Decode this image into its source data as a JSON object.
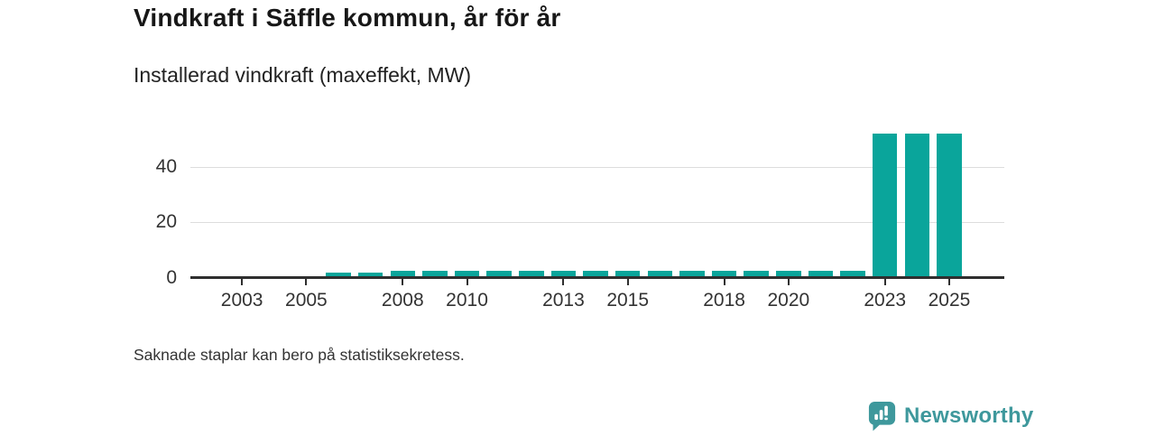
{
  "header": {
    "title": "Vindkraft i Säffle kommun, år för år",
    "subtitle": "Installerad vindkraft (maxeffekt, MW)"
  },
  "footnote": {
    "text": "Saknade staplar kan bero på statistiksekretess."
  },
  "branding": {
    "logo_text": "Newsworthy",
    "logo_icon": "bar-chart-speech-bubble-icon",
    "brand_color": "#3e989c"
  },
  "colors": {
    "bar": "#0aa59b",
    "axis_line": "#2f2f2f",
    "gridline": "#dddddd",
    "axis_text": "#333333",
    "title_text": "#171717"
  },
  "chart_data": {
    "type": "bar",
    "title": "Vindkraft i Säffle kommun, år för år",
    "subtitle": "Installerad vindkraft (maxeffekt, MW)",
    "ylabel": "Installerad vindkraft (maxeffekt, MW)",
    "xlabel": "",
    "unit": "MW",
    "categories": [
      2002,
      2003,
      2004,
      2005,
      2006,
      2007,
      2008,
      2009,
      2010,
      2011,
      2012,
      2013,
      2014,
      2015,
      2016,
      2017,
      2018,
      2019,
      2020,
      2021,
      2022,
      2023,
      2024,
      2025
    ],
    "values": [
      null,
      null,
      null,
      null,
      1.7,
      1.7,
      2.5,
      2.5,
      2.5,
      2.5,
      2.5,
      2.5,
      2.5,
      2.5,
      2.5,
      2.5,
      2.5,
      2.5,
      2.5,
      2.5,
      2.5,
      52,
      52,
      52
    ],
    "missing_years": [
      2002,
      2003,
      2004,
      2005
    ],
    "xticks": [
      2003,
      2005,
      2008,
      2010,
      2013,
      2015,
      2018,
      2020,
      2023,
      2025
    ],
    "yticks": [
      0,
      20,
      40
    ],
    "ylim": [
      0,
      55
    ],
    "grid": "horizontal-only",
    "legend": "none"
  }
}
